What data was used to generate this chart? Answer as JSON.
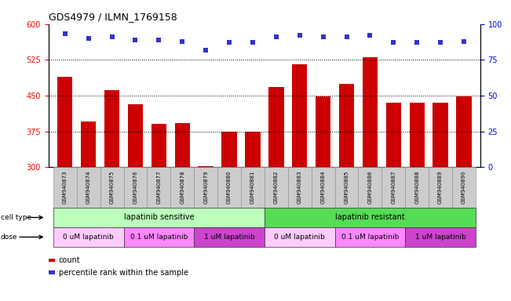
{
  "title": "GDS4979 / ILMN_1769158",
  "samples": [
    "GSM940873",
    "GSM940874",
    "GSM940875",
    "GSM940876",
    "GSM940877",
    "GSM940878",
    "GSM940879",
    "GSM940880",
    "GSM940881",
    "GSM940882",
    "GSM940883",
    "GSM940884",
    "GSM940885",
    "GSM940886",
    "GSM940887",
    "GSM940888",
    "GSM940889",
    "GSM940890"
  ],
  "bar_values": [
    490,
    395,
    462,
    432,
    390,
    393,
    302,
    375,
    375,
    468,
    515,
    449,
    475,
    530,
    435,
    435,
    435,
    448
  ],
  "percentile_values": [
    93,
    90,
    91,
    89,
    89,
    88,
    82,
    87,
    87,
    91,
    92,
    91,
    91,
    92,
    87,
    87,
    87,
    88
  ],
  "bar_color": "#cc0000",
  "percentile_color": "#3333cc",
  "ylim_left": [
    300,
    600
  ],
  "ylim_right": [
    0,
    100
  ],
  "yticks_left": [
    300,
    375,
    450,
    525,
    600
  ],
  "yticks_right": [
    0,
    25,
    50,
    75,
    100
  ],
  "hlines": [
    375,
    450,
    525
  ],
  "cell_type_sensitive_color": "#bbffbb",
  "cell_type_resistant_color": "#55dd55",
  "dose_color_0": "#ffccff",
  "dose_color_01": "#ff88ff",
  "dose_color_1": "#cc44cc",
  "background_color": "#ffffff",
  "plot_facecolor": "#ffffff",
  "tick_label_bg": "#cccccc"
}
